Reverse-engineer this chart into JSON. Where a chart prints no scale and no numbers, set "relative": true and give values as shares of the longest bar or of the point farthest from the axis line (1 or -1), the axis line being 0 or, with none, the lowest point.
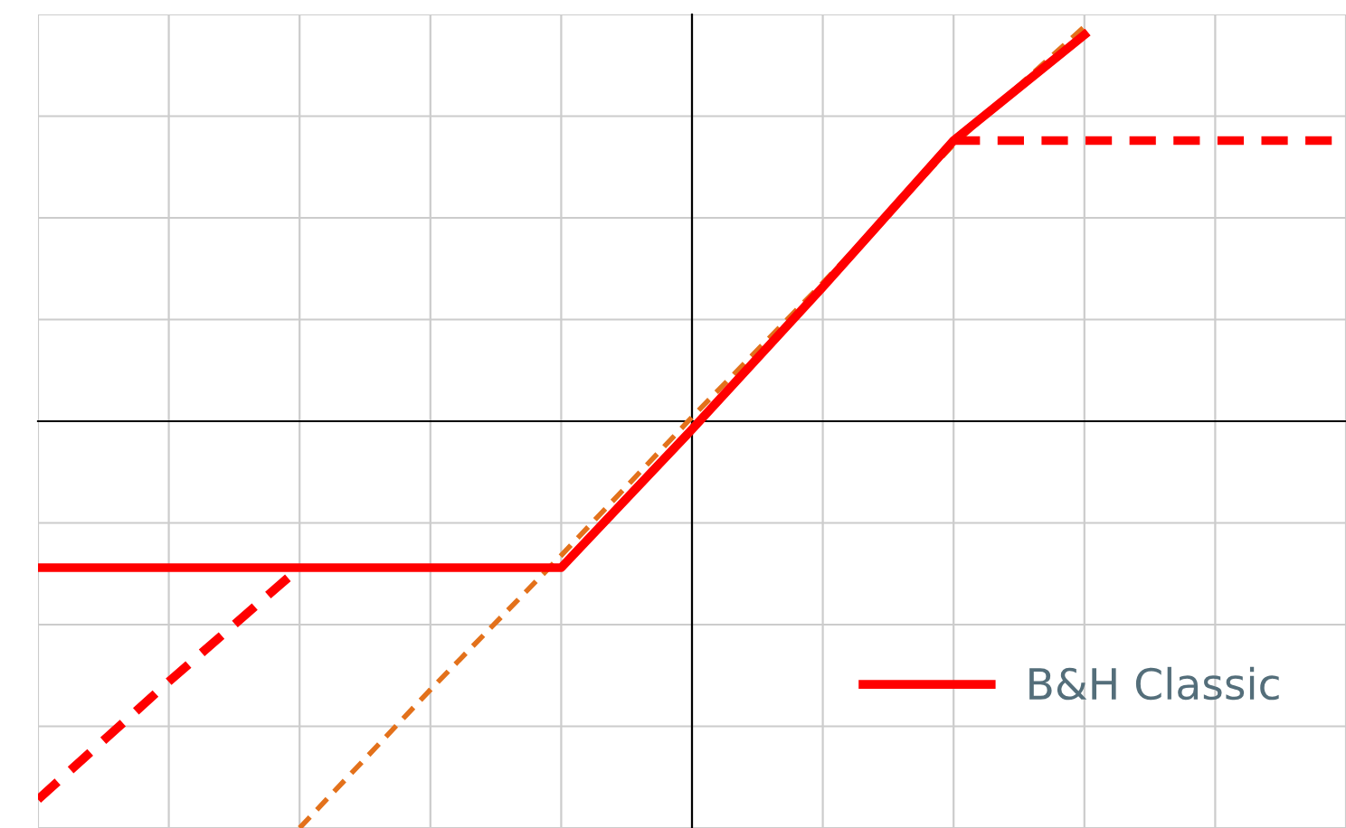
{
  "chart_data": {
    "type": "line",
    "relative": true,
    "grid": true,
    "legend": "bottom right",
    "tick_labels": false,
    "categories": [
      null,
      null,
      null,
      null,
      null,
      null,
      null,
      null,
      null,
      null,
      null
    ],
    "series": [
      {
        "color": "#e3711b",
        "line_style": "dashed",
        "values": [
          null,
          null,
          -1,
          -0.66,
          -0.33,
          0.01,
          0.34,
          0.68,
          0.97,
          null,
          null
        ]
      },
      {
        "name": "B&H Classic",
        "color": "#ff0000",
        "line_style": "solid",
        "values": [
          -0.36,
          -0.36,
          -0.36,
          -0.36,
          -0.36,
          -0.02,
          0.33,
          0.69,
          0.95,
          null,
          null
        ]
      },
      {
        "color": "#ff0000",
        "line_style": "dashed",
        "values": [
          -0.93,
          -0.64,
          -0.36,
          null,
          null,
          null,
          null,
          0.69,
          0.69,
          0.69,
          0.69
        ]
      }
    ]
  }
}
